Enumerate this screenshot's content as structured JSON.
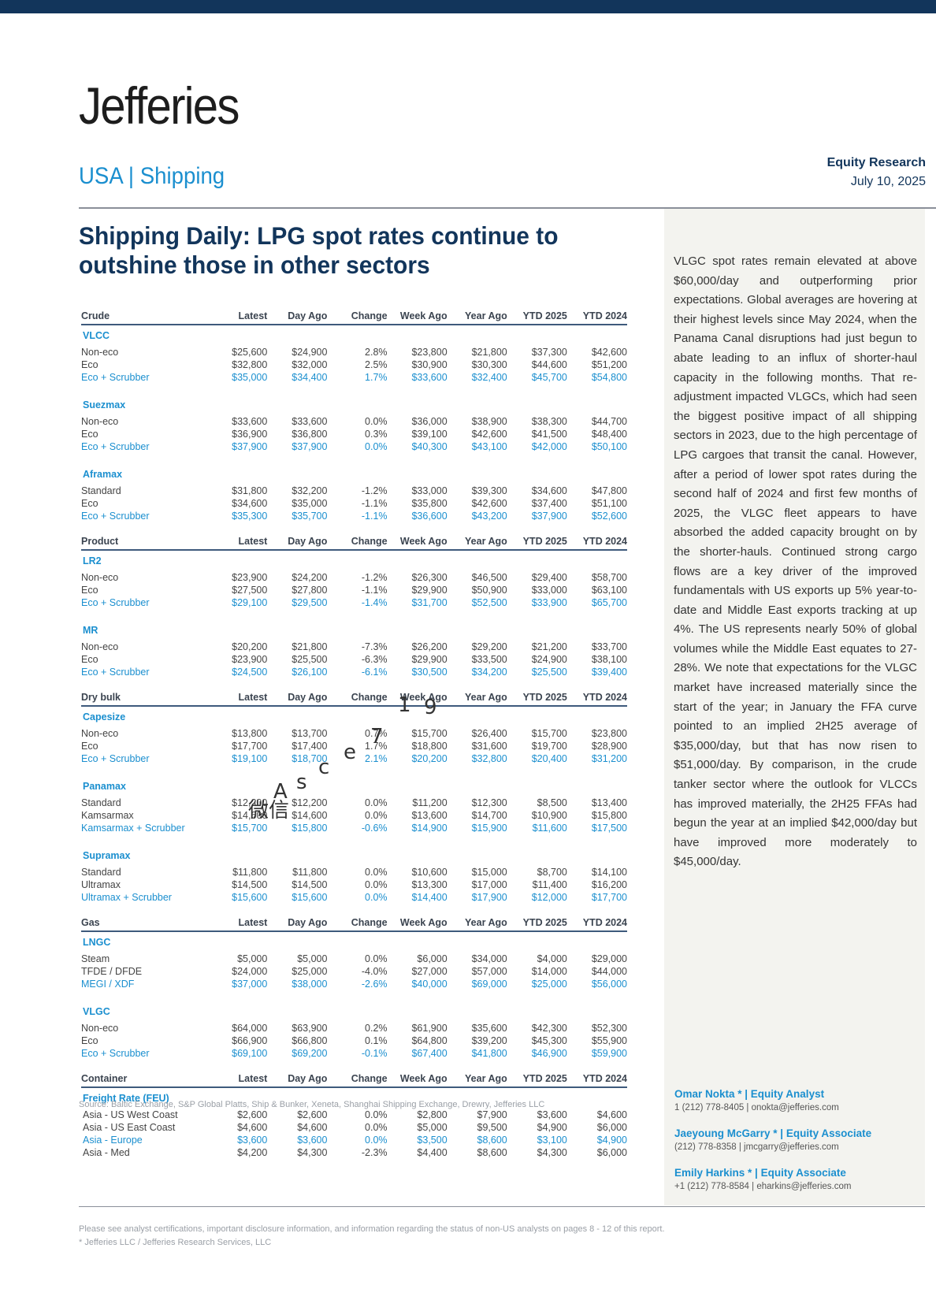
{
  "header": {
    "logo": "Jefferies",
    "sector": "USA | Shipping",
    "report_type": "Equity Research",
    "date": "July 10, 2025"
  },
  "title": "Shipping Daily: LPG spot rates continue to outshine those in other sectors",
  "columns": [
    "Latest",
    "Day Ago",
    "Change",
    "Week Ago",
    "Year Ago",
    "YTD 2025",
    "YTD 2024"
  ],
  "sections": [
    {
      "name": "Crude",
      "groups": [
        {
          "name": "VLCC",
          "rows": [
            {
              "label": "Non-eco",
              "values": [
                "$25,600",
                "$24,900",
                "2.8%",
                "$23,800",
                "$21,800",
                "$37,300",
                "$42,600"
              ]
            },
            {
              "label": "Eco",
              "values": [
                "$32,800",
                "$32,000",
                "2.5%",
                "$30,900",
                "$30,300",
                "$44,600",
                "$51,200"
              ]
            },
            {
              "label": "Eco + Scrubber",
              "scrubber": true,
              "values": [
                "$35,000",
                "$34,400",
                "1.7%",
                "$33,600",
                "$32,400",
                "$45,700",
                "$54,800"
              ]
            }
          ]
        },
        {
          "name": "Suezmax",
          "rows": [
            {
              "label": "Non-eco",
              "values": [
                "$33,600",
                "$33,600",
                "0.0%",
                "$36,000",
                "$38,900",
                "$38,300",
                "$44,700"
              ]
            },
            {
              "label": "Eco",
              "values": [
                "$36,900",
                "$36,800",
                "0.3%",
                "$39,100",
                "$42,600",
                "$41,500",
                "$48,400"
              ]
            },
            {
              "label": "Eco + Scrubber",
              "scrubber": true,
              "values": [
                "$37,900",
                "$37,900",
                "0.0%",
                "$40,300",
                "$43,100",
                "$42,000",
                "$50,100"
              ]
            }
          ]
        },
        {
          "name": "Aframax",
          "rows": [
            {
              "label": "Standard",
              "values": [
                "$31,800",
                "$32,200",
                "-1.2%",
                "$33,000",
                "$39,300",
                "$34,600",
                "$47,800"
              ]
            },
            {
              "label": "Eco",
              "values": [
                "$34,600",
                "$35,000",
                "-1.1%",
                "$35,800",
                "$42,600",
                "$37,400",
                "$51,100"
              ]
            },
            {
              "label": "Eco + Scrubber",
              "scrubber": true,
              "values": [
                "$35,300",
                "$35,700",
                "-1.1%",
                "$36,600",
                "$43,200",
                "$37,900",
                "$52,600"
              ]
            }
          ]
        }
      ]
    },
    {
      "name": "Product",
      "groups": [
        {
          "name": "LR2",
          "rows": [
            {
              "label": "Non-eco",
              "values": [
                "$23,900",
                "$24,200",
                "-1.2%",
                "$26,300",
                "$46,500",
                "$29,400",
                "$58,700"
              ]
            },
            {
              "label": "Eco",
              "values": [
                "$27,500",
                "$27,800",
                "-1.1%",
                "$29,900",
                "$50,900",
                "$33,000",
                "$63,100"
              ]
            },
            {
              "label": "Eco + Scrubber",
              "scrubber": true,
              "values": [
                "$29,100",
                "$29,500",
                "-1.4%",
                "$31,700",
                "$52,500",
                "$33,900",
                "$65,700"
              ]
            }
          ]
        },
        {
          "name": "MR",
          "rows": [
            {
              "label": "Non-eco",
              "values": [
                "$20,200",
                "$21,800",
                "-7.3%",
                "$26,200",
                "$29,200",
                "$21,200",
                "$33,700"
              ]
            },
            {
              "label": "Eco",
              "values": [
                "$23,900",
                "$25,500",
                "-6.3%",
                "$29,900",
                "$33,500",
                "$24,900",
                "$38,100"
              ]
            },
            {
              "label": "Eco + Scrubber",
              "scrubber": true,
              "values": [
                "$24,500",
                "$26,100",
                "-6.1%",
                "$30,500",
                "$34,200",
                "$25,500",
                "$39,400"
              ]
            }
          ]
        }
      ]
    },
    {
      "name": "Dry bulk",
      "groups": [
        {
          "name": "Capesize",
          "rows": [
            {
              "label": "Non-eco",
              "values": [
                "$13,800",
                "$13,700",
                "0.7%",
                "$15,700",
                "$26,400",
                "$15,700",
                "$23,800"
              ]
            },
            {
              "label": "Eco",
              "values": [
                "$17,700",
                "$17,400",
                "1.7%",
                "$18,800",
                "$31,600",
                "$19,700",
                "$28,900"
              ]
            },
            {
              "label": "Eco + Scrubber",
              "scrubber": true,
              "values": [
                "$19,100",
                "$18,700",
                "2.1%",
                "$20,200",
                "$32,800",
                "$20,400",
                "$31,200"
              ]
            }
          ]
        },
        {
          "name": "Panamax",
          "rows": [
            {
              "label": "Standard",
              "values": [
                "$12,200",
                "$12,200",
                "0.0%",
                "$11,200",
                "$12,300",
                "$8,500",
                "$13,400"
              ]
            },
            {
              "label": "Kamsarmax",
              "values": [
                "$14,600",
                "$14,600",
                "0.0%",
                "$13,600",
                "$14,700",
                "$10,900",
                "$15,800"
              ]
            },
            {
              "label": "Kamsarmax + Scrubber",
              "scrubber": true,
              "values": [
                "$15,700",
                "$15,800",
                "-0.6%",
                "$14,900",
                "$15,900",
                "$11,600",
                "$17,500"
              ]
            }
          ]
        },
        {
          "name": "Supramax",
          "rows": [
            {
              "label": "Standard",
              "values": [
                "$11,800",
                "$11,800",
                "0.0%",
                "$10,600",
                "$15,000",
                "$8,700",
                "$14,100"
              ]
            },
            {
              "label": "Ultramax",
              "values": [
                "$14,500",
                "$14,500",
                "0.0%",
                "$13,300",
                "$17,000",
                "$11,400",
                "$16,200"
              ]
            },
            {
              "label": "Ultramax + Scrubber",
              "scrubber": true,
              "values": [
                "$15,600",
                "$15,600",
                "0.0%",
                "$14,400",
                "$17,900",
                "$12,000",
                "$17,700"
              ]
            }
          ]
        }
      ]
    },
    {
      "name": "Gas",
      "groups": [
        {
          "name": "LNGC",
          "rows": [
            {
              "label": "Steam",
              "values": [
                "$5,000",
                "$5,000",
                "0.0%",
                "$6,000",
                "$34,000",
                "$4,000",
                "$29,000"
              ]
            },
            {
              "label": "TFDE / DFDE",
              "values": [
                "$24,000",
                "$25,000",
                "-4.0%",
                "$27,000",
                "$57,000",
                "$14,000",
                "$44,000"
              ]
            },
            {
              "label": "MEGI / XDF",
              "scrubber": true,
              "values": [
                "$37,000",
                "$38,000",
                "-2.6%",
                "$40,000",
                "$69,000",
                "$25,000",
                "$56,000"
              ]
            }
          ]
        },
        {
          "name": "VLGC",
          "rows": [
            {
              "label": "Non-eco",
              "values": [
                "$64,000",
                "$63,900",
                "0.2%",
                "$61,900",
                "$35,600",
                "$42,300",
                "$52,300"
              ]
            },
            {
              "label": "Eco",
              "values": [
                "$66,900",
                "$66,800",
                "0.1%",
                "$64,800",
                "$39,200",
                "$45,300",
                "$55,900"
              ]
            },
            {
              "label": "Eco + Scrubber",
              "scrubber": true,
              "values": [
                "$69,100",
                "$69,200",
                "-0.1%",
                "$67,400",
                "$41,800",
                "$46,900",
                "$59,900"
              ]
            }
          ]
        }
      ]
    },
    {
      "name": "Container",
      "groups": [
        {
          "name": "Freight Rate (FEU)",
          "rows": [
            {
              "label": "Asia - US West Coast",
              "values": [
                "$2,600",
                "$2,600",
                "0.0%",
                "$2,800",
                "$7,900",
                "$3,600",
                "$4,600"
              ]
            },
            {
              "label": "Asia - US East Coast",
              "values": [
                "$4,600",
                "$4,600",
                "0.0%",
                "$5,000",
                "$9,500",
                "$4,900",
                "$6,000"
              ]
            },
            {
              "label": "Asia - Europe",
              "scrubber": true,
              "values": [
                "$3,600",
                "$3,600",
                "0.0%",
                "$3,500",
                "$8,600",
                "$3,100",
                "$4,900"
              ]
            },
            {
              "label": "Asia - Med",
              "values": [
                "$4,200",
                "$4,300",
                "-2.3%",
                "$4,400",
                "$8,600",
                "$4,300",
                "$6,000"
              ]
            }
          ]
        }
      ]
    }
  ],
  "source": "Source: Baltic Exchange, S&P Global Platts, Ship & Bunker, Xeneta, Shanghai Shipping Exchange, Drewry, Jefferies LLC",
  "summary": "VLGC spot rates remain elevated at above $60,000/day and outperforming prior expectations. Global averages are hovering at their highest levels since May 2024, when the Panama Canal disruptions had just begun to abate leading to an influx of shorter-haul capacity in the following months. That re-adjustment impacted VLGCs, which had seen the biggest positive impact of all shipping sectors in 2023, due to the high percentage of LPG cargoes that transit the canal. However, after a period of lower spot rates during the second half of 2024 and first few months of 2025, the VLGC fleet appears to have absorbed the added capacity brought on by the shorter-hauls. Continued strong cargo flows are a key driver of the improved fundamentals with US exports up 5% year-to-date and Middle East exports tracking at up 4%. The US represents nearly 50% of global volumes while the Middle East equates to 27-28%. We note that expectations for the VLGC market have increased materially since the start of the year; in January the FFA curve pointed to an implied 2H25 average of $35,000/day, but that has now risen to $51,000/day. By comparison, in the crude tanker sector where the outlook for VLCCs has improved materially, the 2H25 FFAs had begun the year at an implied $42,000/day but have improved more moderately to $45,000/day.",
  "analysts": [
    {
      "name": "Omar Nokta *  | Equity Analyst",
      "contact": "1 (212) 778-8405 | onokta@jefferies.com"
    },
    {
      "name": "Jaeyoung McGarry *  | Equity Associate",
      "contact": "(212) 778-8358 | jmcgarry@jefferies.com"
    },
    {
      "name": "Emily Harkins *  | Equity Associate",
      "contact": "+1 (212) 778-8584 | eharkins@jefferies.com"
    }
  ],
  "footer": {
    "disclaimer": "Please see analyst certifications, important disclosure information, and information regarding the status of non-US analysts on pages  8 - 12 of this report.",
    "entities": "* Jefferies LLC / Jefferies Research Services, LLC"
  },
  "watermark": {
    "chars": [
      "1",
      "9",
      "7",
      "e",
      "c",
      "s",
      "A",
      "微信"
    ]
  }
}
